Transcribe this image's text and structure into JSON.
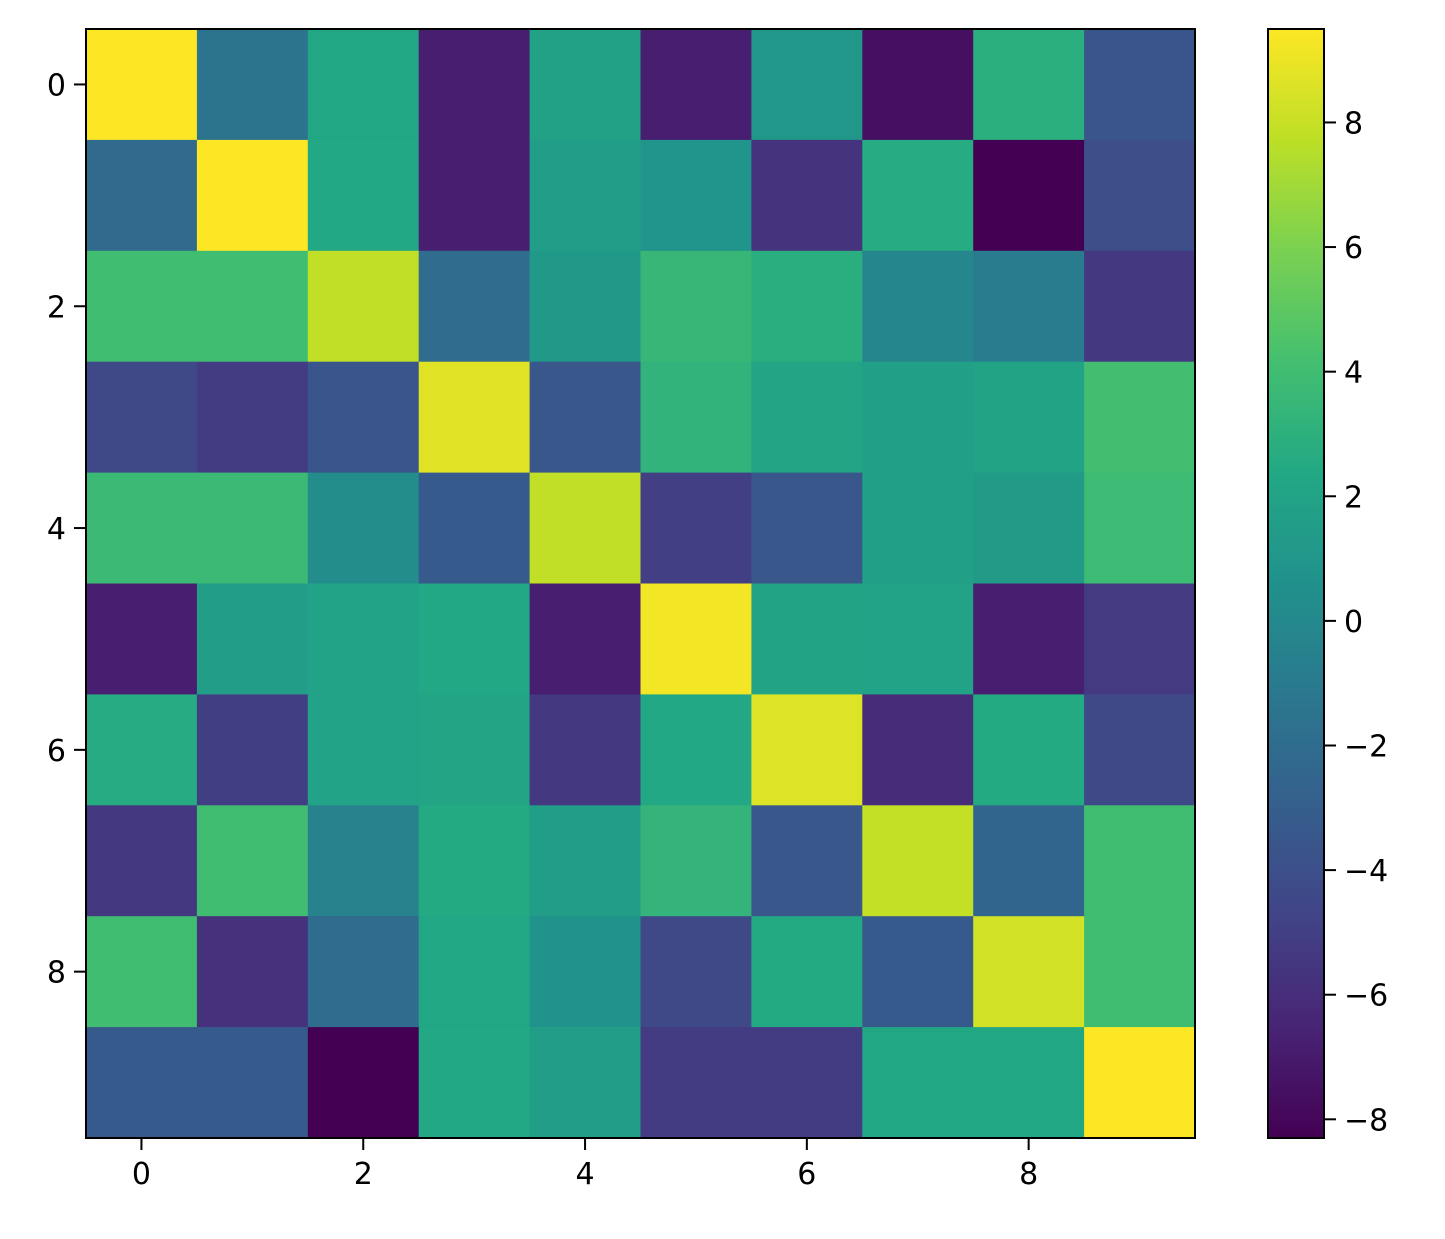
{
  "chart_data": {
    "type": "heatmap",
    "x_ticks": [
      0,
      2,
      4,
      6,
      8
    ],
    "x_tick_labels": [
      "0",
      "2",
      "4",
      "6",
      "8"
    ],
    "y_ticks": [
      0,
      2,
      4,
      6,
      8
    ],
    "y_tick_labels": [
      "0",
      "2",
      "4",
      "6",
      "8"
    ],
    "xlim": [
      -0.5,
      9.5
    ],
    "ylim": [
      9.5,
      -0.5
    ],
    "colormap": "viridis",
    "colorbar": {
      "vmin": -8.3,
      "vmax": 9.5,
      "ticks": [
        8,
        6,
        4,
        2,
        0,
        -2,
        -4,
        -6,
        -8
      ],
      "tick_labels": [
        "8",
        "6",
        "4",
        "2",
        "0",
        "−2",
        "−4",
        "−6",
        "−8"
      ]
    },
    "matrix": [
      [
        9.5,
        -1.5,
        2.3,
        -6.8,
        1.8,
        -6.8,
        1.1,
        -7.6,
        2.9,
        -3.6
      ],
      [
        -2.2,
        9.5,
        2.4,
        -6.8,
        1.6,
        0.8,
        -5.7,
        2.6,
        -8.3,
        -4.1
      ],
      [
        4.0,
        4.0,
        7.8,
        -2.0,
        1.2,
        3.5,
        2.8,
        -0.2,
        -1.0,
        -5.4
      ],
      [
        -4.4,
        -5.2,
        -3.6,
        8.7,
        -3.5,
        3.2,
        2.1,
        1.7,
        2.0,
        4.1
      ],
      [
        3.7,
        3.7,
        0.3,
        -3.3,
        7.8,
        -5.0,
        -3.5,
        1.7,
        1.4,
        3.8
      ],
      [
        -6.8,
        1.6,
        1.9,
        2.4,
        -6.8,
        9.2,
        2.0,
        1.9,
        -6.8,
        -5.3
      ],
      [
        2.6,
        -5.1,
        1.9,
        2.1,
        -5.4,
        2.4,
        8.6,
        -6.1,
        2.5,
        -4.4
      ],
      [
        -5.4,
        4.0,
        -0.5,
        2.5,
        1.5,
        3.3,
        -3.5,
        7.9,
        -2.5,
        4.0
      ],
      [
        4.0,
        -5.8,
        -2.0,
        2.3,
        0.7,
        -4.4,
        2.5,
        -3.3,
        8.3,
        4.0
      ],
      [
        -3.3,
        -3.3,
        -8.3,
        2.4,
        1.6,
        -5.2,
        -5.2,
        2.3,
        2.3,
        9.5
      ]
    ]
  }
}
